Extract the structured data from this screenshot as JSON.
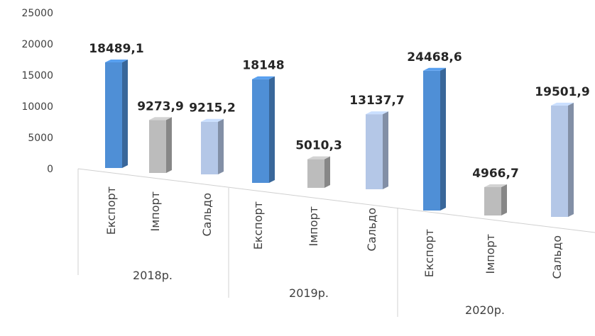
{
  "chart_data": {
    "type": "bar",
    "three_d": true,
    "groups": [
      "2018р.",
      "2019р.",
      "2020р."
    ],
    "categories": [
      "Експорт",
      "Імпорт",
      "Сальдо"
    ],
    "series": [
      {
        "values": [
          18489.1,
          18148,
          24468.6
        ],
        "color": "#4f8fd6"
      },
      {
        "values": [
          9273.9,
          5010.3,
          4966.7
        ],
        "color": "#bcbcbc"
      },
      {
        "values": [
          9215.2,
          13137.7,
          19501.9
        ],
        "color": "#b4c7e7"
      }
    ],
    "data_labels": [
      [
        "18489,1",
        "9273,9",
        "9215,2"
      ],
      [
        "18148",
        "5010,3",
        "13137,7"
      ],
      [
        "24468,6",
        "4966,7",
        "19501,9"
      ]
    ],
    "y_ticks": [
      "0",
      "5000",
      "10000",
      "15000",
      "20000",
      "25000"
    ],
    "ylim": [
      0,
      25000
    ],
    "grid": false,
    "legend": "none"
  }
}
